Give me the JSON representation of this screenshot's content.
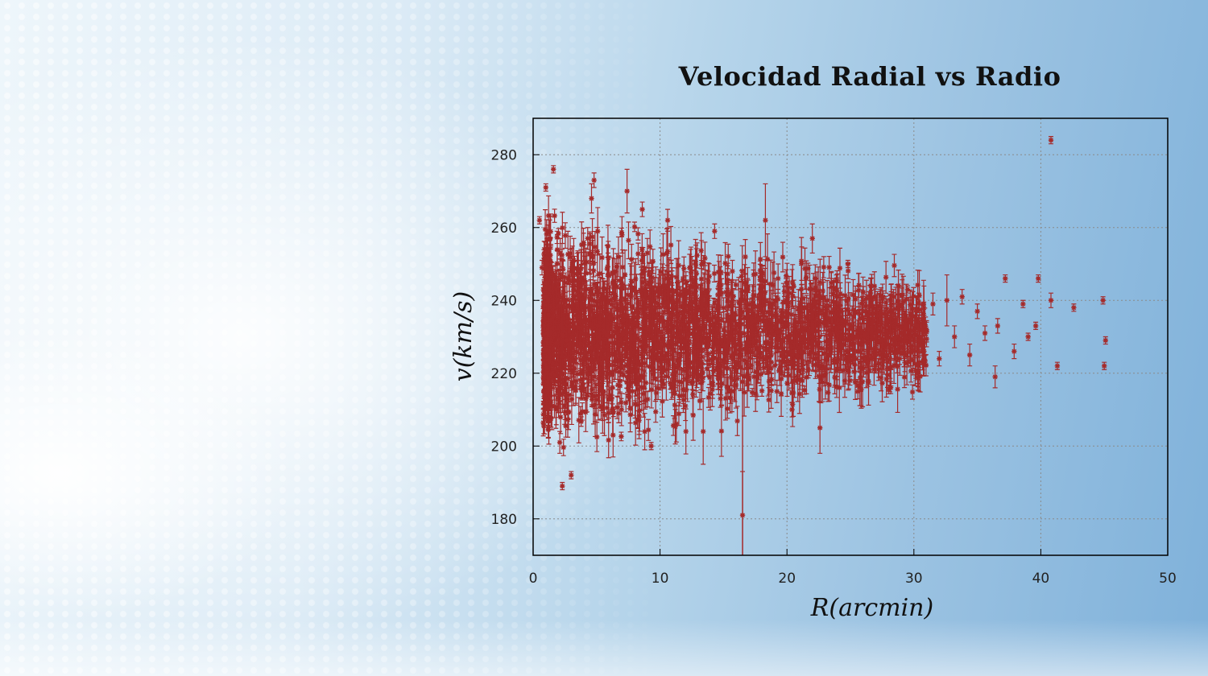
{
  "slide": {
    "title": "Velocidad Radial vs Radio"
  },
  "chart_data": {
    "type": "scatter",
    "title": "Velocidad Radial vs Radio",
    "xlabel": "R(arcmin)",
    "ylabel": "v(km/s)",
    "xlim": [
      0,
      50
    ],
    "ylim": [
      170,
      290
    ],
    "xticks": [
      0,
      10,
      20,
      30,
      40,
      50
    ],
    "yticks": [
      180,
      200,
      220,
      240,
      260,
      280
    ],
    "grid": true,
    "marker": "star",
    "color": "#a52a2a",
    "error_bars": true,
    "series": [
      {
        "points": [
          {
            "x": 0.5,
            "y": 262,
            "err": 1
          },
          {
            "x": 0.7,
            "y": 249,
            "err": 2
          },
          {
            "x": 1.0,
            "y": 271,
            "err": 1
          },
          {
            "x": 1.6,
            "y": 276,
            "err": 1
          },
          {
            "x": 1.2,
            "y": 236,
            "err": 6
          },
          {
            "x": 1.4,
            "y": 212,
            "err": 4
          },
          {
            "x": 1.8,
            "y": 243,
            "err": 5
          },
          {
            "x": 2.1,
            "y": 201,
            "err": 3
          },
          {
            "x": 2.3,
            "y": 189,
            "err": 1
          },
          {
            "x": 2.6,
            "y": 229,
            "err": 8
          },
          {
            "x": 3.0,
            "y": 192,
            "err": 1
          },
          {
            "x": 3.2,
            "y": 251,
            "err": 6
          },
          {
            "x": 3.6,
            "y": 241,
            "err": 4
          },
          {
            "x": 4.0,
            "y": 224,
            "err": 10
          },
          {
            "x": 4.3,
            "y": 257,
            "err": 3
          },
          {
            "x": 4.6,
            "y": 268,
            "err": 4
          },
          {
            "x": 4.8,
            "y": 273,
            "err": 2
          },
          {
            "x": 5.1,
            "y": 233,
            "err": 12
          },
          {
            "x": 5.5,
            "y": 215,
            "err": 8
          },
          {
            "x": 5.9,
            "y": 247,
            "err": 6
          },
          {
            "x": 6.3,
            "y": 203,
            "err": 6
          },
          {
            "x": 6.6,
            "y": 231,
            "err": 9
          },
          {
            "x": 7.0,
            "y": 258,
            "err": 5
          },
          {
            "x": 7.4,
            "y": 270,
            "err": 6
          },
          {
            "x": 7.8,
            "y": 238,
            "err": 7
          },
          {
            "x": 8.2,
            "y": 219,
            "err": 5
          },
          {
            "x": 8.6,
            "y": 265,
            "err": 2
          },
          {
            "x": 9.0,
            "y": 253,
            "err": 4
          },
          {
            "x": 9.3,
            "y": 200,
            "err": 1
          },
          {
            "x": 9.8,
            "y": 228,
            "err": 7
          },
          {
            "x": 10.2,
            "y": 244,
            "err": 6
          },
          {
            "x": 10.6,
            "y": 262,
            "err": 3
          },
          {
            "x": 11.1,
            "y": 226,
            "err": 9
          },
          {
            "x": 11.5,
            "y": 236,
            "err": 5
          },
          {
            "x": 12.0,
            "y": 211,
            "err": 4
          },
          {
            "x": 12.4,
            "y": 249,
            "err": 5
          },
          {
            "x": 12.9,
            "y": 232,
            "err": 6
          },
          {
            "x": 13.4,
            "y": 204,
            "err": 9
          },
          {
            "x": 13.8,
            "y": 241,
            "err": 7
          },
          {
            "x": 14.3,
            "y": 259,
            "err": 2
          },
          {
            "x": 14.8,
            "y": 222,
            "err": 8
          },
          {
            "x": 15.3,
            "y": 236,
            "err": 10
          },
          {
            "x": 15.7,
            "y": 248,
            "err": 3
          },
          {
            "x": 16.2,
            "y": 228,
            "err": 6
          },
          {
            "x": 16.5,
            "y": 181,
            "err": 12
          },
          {
            "x": 16.9,
            "y": 243,
            "err": 6
          },
          {
            "x": 17.4,
            "y": 219,
            "err": 5
          },
          {
            "x": 17.8,
            "y": 235,
            "err": 4
          },
          {
            "x": 18.3,
            "y": 262,
            "err": 10
          },
          {
            "x": 18.7,
            "y": 228,
            "err": 7
          },
          {
            "x": 19.3,
            "y": 246,
            "err": 4
          },
          {
            "x": 19.8,
            "y": 223,
            "err": 4
          },
          {
            "x": 20.4,
            "y": 210,
            "err": 2
          },
          {
            "x": 20.9,
            "y": 238,
            "err": 5
          },
          {
            "x": 21.5,
            "y": 246,
            "err": 3
          },
          {
            "x": 22.0,
            "y": 257,
            "err": 4
          },
          {
            "x": 22.6,
            "y": 205,
            "err": 7
          },
          {
            "x": 23.1,
            "y": 233,
            "err": 6
          },
          {
            "x": 23.7,
            "y": 243,
            "err": 3
          },
          {
            "x": 24.2,
            "y": 226,
            "err": 5
          },
          {
            "x": 24.8,
            "y": 250,
            "err": 1
          },
          {
            "x": 25.4,
            "y": 237,
            "err": 4
          },
          {
            "x": 26.0,
            "y": 229,
            "err": 3
          },
          {
            "x": 26.6,
            "y": 244,
            "err": 2
          },
          {
            "x": 27.2,
            "y": 221,
            "err": 3
          },
          {
            "x": 27.8,
            "y": 236,
            "err": 2
          },
          {
            "x": 28.4,
            "y": 241,
            "err": 2
          },
          {
            "x": 29.0,
            "y": 231,
            "err": 2
          },
          {
            "x": 29.5,
            "y": 243,
            "err": 1
          },
          {
            "x": 30.2,
            "y": 233,
            "err": 3
          },
          {
            "x": 30.8,
            "y": 226,
            "err": 2
          },
          {
            "x": 31.5,
            "y": 239,
            "err": 3
          },
          {
            "x": 32.0,
            "y": 224,
            "err": 2
          },
          {
            "x": 32.6,
            "y": 240,
            "err": 7
          },
          {
            "x": 33.2,
            "y": 230,
            "err": 3
          },
          {
            "x": 33.8,
            "y": 241,
            "err": 2
          },
          {
            "x": 34.4,
            "y": 225,
            "err": 3
          },
          {
            "x": 35.0,
            "y": 237,
            "err": 2
          },
          {
            "x": 35.6,
            "y": 231,
            "err": 2
          },
          {
            "x": 36.4,
            "y": 219,
            "err": 3
          },
          {
            "x": 36.6,
            "y": 233,
            "err": 2
          },
          {
            "x": 37.2,
            "y": 246,
            "err": 1
          },
          {
            "x": 37.9,
            "y": 226,
            "err": 2
          },
          {
            "x": 38.6,
            "y": 239,
            "err": 1
          },
          {
            "x": 39.0,
            "y": 230,
            "err": 1
          },
          {
            "x": 39.6,
            "y": 233,
            "err": 1
          },
          {
            "x": 39.8,
            "y": 246,
            "err": 1
          },
          {
            "x": 40.8,
            "y": 284,
            "err": 1
          },
          {
            "x": 40.8,
            "y": 240,
            "err": 2
          },
          {
            "x": 41.3,
            "y": 222,
            "err": 1
          },
          {
            "x": 42.6,
            "y": 238,
            "err": 1
          },
          {
            "x": 44.9,
            "y": 240,
            "err": 1
          },
          {
            "x": 45.0,
            "y": 222,
            "err": 1
          },
          {
            "x": 45.1,
            "y": 229,
            "err": 1
          }
        ]
      }
    ]
  }
}
